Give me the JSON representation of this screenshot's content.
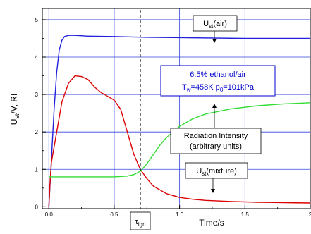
{
  "chart_data": {
    "type": "line",
    "xlabel": "Time/s",
    "ylabel": "U",
    "ylabel_sub": "st",
    "ylabel_rest": "/V, RI",
    "xlim": [
      -0.05,
      2.0
    ],
    "ylim": [
      -0.05,
      5.3
    ],
    "x_ticks": [
      0.0,
      0.5,
      1.0,
      1.5,
      2.0
    ],
    "x_tick_labels": [
      "0.0",
      "0.5",
      "1.0",
      "1.5",
      "2"
    ],
    "y_ticks": [
      0,
      1,
      2,
      3,
      4,
      5
    ],
    "y_tick_labels": [
      "0",
      "1",
      "2",
      "3",
      "4",
      "5"
    ],
    "grid": true,
    "vline": {
      "x": 0.7,
      "label_main": "τ",
      "label_sub": "ign"
    },
    "series": [
      {
        "id": "ust-air",
        "color": "#2222dd",
        "x": [
          0.0,
          0.02,
          0.04,
          0.06,
          0.08,
          0.1,
          0.12,
          0.15,
          0.2,
          0.3,
          0.5,
          0.75,
          1.0,
          1.5,
          2.0
        ],
        "y": [
          0.0,
          1.3,
          2.6,
          3.6,
          4.2,
          4.45,
          4.55,
          4.58,
          4.58,
          4.56,
          4.55,
          4.53,
          4.52,
          4.5,
          4.5
        ]
      },
      {
        "id": "ust-mixture",
        "color": "#dd0000",
        "x": [
          0.0,
          0.01,
          0.02,
          0.04,
          0.06,
          0.08,
          0.1,
          0.15,
          0.2,
          0.25,
          0.3,
          0.35,
          0.4,
          0.45,
          0.5,
          0.55,
          0.6,
          0.65,
          0.7,
          0.75,
          0.8,
          0.9,
          1.0,
          1.1,
          1.2,
          1.4,
          1.6,
          1.8,
          2.0
        ],
        "y": [
          0.0,
          0.7,
          1.2,
          1.6,
          2.0,
          2.4,
          2.8,
          3.3,
          3.5,
          3.48,
          3.4,
          3.2,
          3.05,
          2.95,
          2.85,
          2.6,
          2.0,
          1.4,
          1.0,
          0.75,
          0.55,
          0.35,
          0.25,
          0.2,
          0.17,
          0.14,
          0.12,
          0.11,
          0.1
        ]
      },
      {
        "id": "radiation-intensity",
        "color": "#33dd33",
        "x": [
          0.0,
          0.1,
          0.2,
          0.3,
          0.4,
          0.5,
          0.6,
          0.65,
          0.7,
          0.75,
          0.8,
          0.85,
          0.9,
          1.0,
          1.1,
          1.2,
          1.4,
          1.6,
          1.8,
          2.0
        ],
        "y": [
          0.8,
          0.8,
          0.8,
          0.8,
          0.8,
          0.8,
          0.82,
          0.86,
          0.95,
          1.15,
          1.4,
          1.65,
          1.85,
          2.15,
          2.35,
          2.48,
          2.62,
          2.7,
          2.75,
          2.78
        ]
      }
    ],
    "annotations": {
      "ust_air": {
        "main": "U",
        "sub": "st",
        "rest": "(air)"
      },
      "conditions_line1": "6.5% ethanol/air",
      "conditions_line2_a": "T",
      "conditions_line2_sub": "w",
      "conditions_line2_b": "=458K  p",
      "conditions_line2_sub2": "0",
      "conditions_line2_c": "=101kPa",
      "radiation_line1": "Radiation Intensity",
      "radiation_line2": "(arbitrary units)",
      "ust_mixture": {
        "main": "U",
        "sub": "st",
        "rest": "(mixture)"
      }
    }
  }
}
